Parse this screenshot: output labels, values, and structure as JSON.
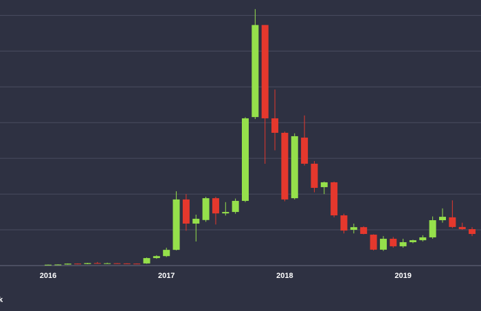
{
  "chart_data": {
    "type": "candlestick",
    "categories": [
      "2016",
      null,
      null,
      null,
      null,
      null,
      null,
      null,
      null,
      null,
      null,
      null,
      "2017",
      null,
      null,
      null,
      null,
      null,
      null,
      null,
      null,
      null,
      null,
      null,
      "2018",
      null,
      null,
      null,
      null,
      null,
      null,
      null,
      null,
      null,
      null,
      null,
      "2019",
      null,
      null,
      null,
      null,
      null,
      null,
      null
    ],
    "open": [
      4,
      5,
      6,
      11,
      9,
      14,
      12,
      13,
      12,
      11,
      12,
      42,
      53,
      88,
      370,
      235,
      255,
      377,
      292,
      300,
      362,
      831,
      1346,
      824,
      743,
      377,
      716,
      570,
      439,
      466,
      281,
      200,
      215,
      173,
      89,
      150,
      108,
      131,
      142,
      158,
      254,
      270,
      216,
      204
    ],
    "high": [
      6,
      7,
      12,
      12,
      15,
      20,
      16,
      14,
      13,
      12,
      45,
      58,
      100,
      416,
      400,
      285,
      385,
      385,
      355,
      375,
      830,
      1435,
      1346,
      985,
      750,
      740,
      840,
      585,
      470,
      470,
      290,
      235,
      220,
      175,
      165,
      160,
      150,
      145,
      170,
      275,
      320,
      365,
      240,
      215
    ],
    "low": [
      3,
      4,
      5,
      7,
      8,
      11,
      10,
      10,
      10,
      8,
      10,
      38,
      48,
      85,
      195,
      135,
      245,
      230,
      280,
      290,
      355,
      820,
      570,
      645,
      360,
      370,
      560,
      410,
      400,
      270,
      180,
      180,
      175,
      85,
      82,
      100,
      100,
      125,
      135,
      150,
      240,
      210,
      200,
      165
    ],
    "close": [
      5,
      6,
      11,
      9,
      14,
      12,
      13,
      12,
      11,
      10,
      42,
      53,
      88,
      370,
      235,
      262,
      377,
      292,
      300,
      362,
      824,
      1346,
      824,
      743,
      370,
      724,
      570,
      435,
      466,
      281,
      196,
      215,
      177,
      89,
      150,
      108,
      131,
      142,
      158,
      254,
      273,
      216,
      204,
      177
    ],
    "up_color": "#95e04b",
    "down_color": "#e5382d",
    "ylim": [
      0,
      1486
    ],
    "yticks": [
      0,
      200,
      400,
      600,
      800,
      1000,
      1200,
      1400
    ],
    "grid": true,
    "footer": "k"
  }
}
